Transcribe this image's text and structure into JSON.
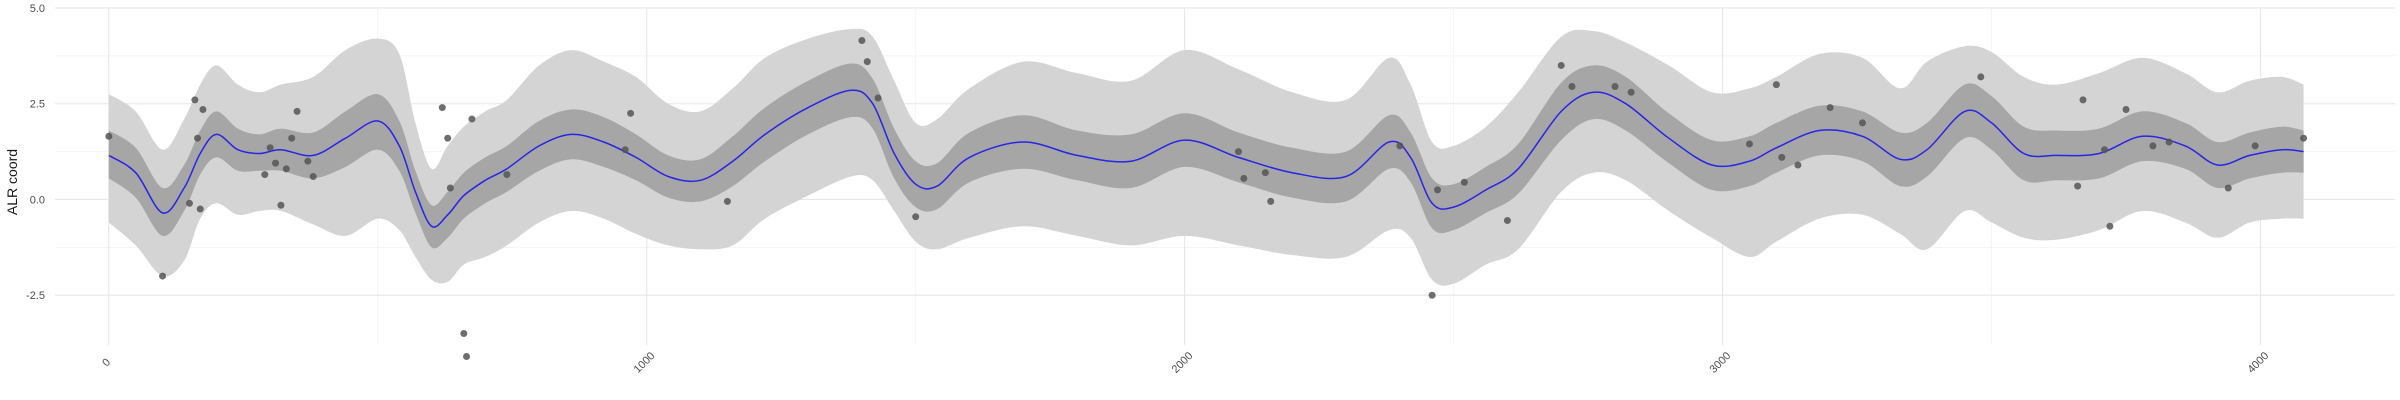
{
  "chart_data": {
    "type": "line",
    "title": "",
    "xlabel": "",
    "ylabel": "ALR coord",
    "xlim": [
      -100,
      4250
    ],
    "ylim": [
      -3.8,
      5.0
    ],
    "x_ticks": [
      0,
      1000,
      2000,
      3000,
      4000
    ],
    "x_tick_labels": [
      "0",
      "1000",
      "2000",
      "3000",
      "4000"
    ],
    "x_minor_ticks": [
      500,
      1500,
      2500,
      3500
    ],
    "y_ticks": [
      -2.5,
      0.0,
      2.5,
      5.0
    ],
    "y_tick_labels": [
      "-2.5",
      "0.0",
      "2.5",
      "5.0"
    ],
    "y_minor_ticks": [
      -1.25,
      1.25,
      3.75
    ],
    "grid": true,
    "legend": "none",
    "colors": {
      "mean_line": "#2626e6",
      "inner_band": "#a6a6a6",
      "outer_band": "#d4d4d4",
      "points": "#555555"
    },
    "series": [
      {
        "kind": "mean",
        "x": [
          0,
          50,
          100,
          140,
          170,
          200,
          240,
          280,
          320,
          380,
          440,
          500,
          540,
          570,
          600,
          630,
          660,
          700,
          740,
          800,
          860,
          920,
          980,
          1040,
          1100,
          1160,
          1220,
          1300,
          1380,
          1420,
          1460,
          1500,
          1540,
          1600,
          1700,
          1800,
          1900,
          2000,
          2100,
          2200,
          2300,
          2380,
          2420,
          2460,
          2500,
          2560,
          2620,
          2700,
          2760,
          2820,
          2900,
          2980,
          3050,
          3100,
          3180,
          3260,
          3330,
          3380,
          3450,
          3500,
          3560,
          3620,
          3700,
          3780,
          3860,
          3920,
          3980,
          4040,
          4080
        ],
        "y": [
          1.15,
          0.7,
          -0.35,
          0.3,
          1.2,
          1.7,
          1.3,
          1.2,
          1.3,
          1.15,
          1.6,
          2.05,
          1.4,
          0.2,
          -0.7,
          -0.4,
          0.1,
          0.5,
          0.8,
          1.4,
          1.7,
          1.5,
          1.1,
          0.6,
          0.5,
          1.0,
          1.7,
          2.4,
          2.85,
          2.5,
          1.2,
          0.4,
          0.35,
          1.1,
          1.5,
          1.15,
          1.0,
          1.55,
          1.1,
          0.7,
          0.6,
          1.5,
          1.1,
          -0.1,
          -0.2,
          0.25,
          0.8,
          2.3,
          2.8,
          2.5,
          1.6,
          0.9,
          1.0,
          1.35,
          1.8,
          1.65,
          1.05,
          1.3,
          2.3,
          2.0,
          1.2,
          1.15,
          1.2,
          1.65,
          1.4,
          0.9,
          1.15,
          1.3,
          1.25
        ]
      },
      {
        "kind": "inner_band",
        "x": [
          0,
          50,
          100,
          140,
          170,
          200,
          240,
          280,
          320,
          380,
          440,
          500,
          540,
          570,
          600,
          630,
          660,
          700,
          740,
          800,
          860,
          920,
          980,
          1040,
          1100,
          1160,
          1220,
          1300,
          1380,
          1420,
          1460,
          1500,
          1540,
          1600,
          1700,
          1800,
          1900,
          2000,
          2100,
          2200,
          2300,
          2380,
          2420,
          2460,
          2500,
          2560,
          2620,
          2700,
          2760,
          2820,
          2900,
          2980,
          3050,
          3100,
          3180,
          3260,
          3330,
          3380,
          3450,
          3500,
          3560,
          3620,
          3700,
          3780,
          3860,
          3920,
          3980,
          4040,
          4080
        ],
        "lower": [
          0.55,
          0.05,
          -0.95,
          -0.3,
          0.65,
          1.1,
          0.75,
          0.75,
          0.75,
          0.55,
          0.85,
          1.3,
          0.75,
          -0.35,
          -1.25,
          -1.0,
          -0.5,
          -0.1,
          0.2,
          0.75,
          1.05,
          0.85,
          0.5,
          0.05,
          -0.05,
          0.35,
          1.0,
          1.7,
          2.15,
          1.85,
          0.55,
          -0.2,
          -0.25,
          0.45,
          0.8,
          0.5,
          0.3,
          0.85,
          0.45,
          0.05,
          -0.05,
          0.8,
          0.45,
          -0.75,
          -0.8,
          -0.35,
          0.15,
          1.55,
          2.1,
          1.8,
          0.95,
          0.25,
          0.35,
          0.7,
          1.15,
          1.0,
          0.35,
          0.6,
          1.6,
          1.3,
          0.5,
          0.5,
          0.55,
          1.0,
          0.8,
          0.3,
          0.55,
          0.7,
          0.7
        ],
        "upper": [
          1.8,
          1.35,
          0.3,
          0.9,
          1.8,
          2.3,
          1.85,
          1.7,
          1.85,
          1.75,
          2.3,
          2.75,
          2.05,
          0.75,
          -0.15,
          0.2,
          0.7,
          1.1,
          1.4,
          2.05,
          2.35,
          2.15,
          1.7,
          1.15,
          1.05,
          1.65,
          2.4,
          3.1,
          3.55,
          3.15,
          1.85,
          1.0,
          0.95,
          1.75,
          2.2,
          1.8,
          1.7,
          2.25,
          1.75,
          1.35,
          1.25,
          2.2,
          1.75,
          0.55,
          0.4,
          0.85,
          1.45,
          3.05,
          3.5,
          3.2,
          2.25,
          1.55,
          1.65,
          2.0,
          2.45,
          2.3,
          1.75,
          2.0,
          3.0,
          2.7,
          1.9,
          1.8,
          1.85,
          2.3,
          2.0,
          1.5,
          1.75,
          1.9,
          1.8
        ]
      },
      {
        "kind": "outer_band",
        "x": [
          0,
          50,
          100,
          140,
          170,
          200,
          240,
          280,
          320,
          380,
          440,
          500,
          540,
          570,
          600,
          630,
          660,
          700,
          740,
          800,
          860,
          920,
          980,
          1040,
          1100,
          1160,
          1220,
          1300,
          1380,
          1420,
          1460,
          1500,
          1540,
          1600,
          1700,
          1800,
          1900,
          2000,
          2100,
          2200,
          2300,
          2380,
          2420,
          2460,
          2500,
          2560,
          2620,
          2700,
          2760,
          2820,
          2900,
          2980,
          3050,
          3100,
          3180,
          3260,
          3330,
          3380,
          3450,
          3500,
          3560,
          3620,
          3700,
          3780,
          3860,
          3920,
          3980,
          4040,
          4080
        ],
        "lower": [
          -0.6,
          -1.2,
          -2.0,
          -1.6,
          -0.5,
          -0.1,
          -0.4,
          -0.3,
          -0.3,
          -0.65,
          -0.95,
          -0.5,
          -0.8,
          -1.5,
          -2.1,
          -2.15,
          -1.7,
          -1.5,
          -1.2,
          -0.6,
          -0.3,
          -0.5,
          -0.9,
          -1.2,
          -1.3,
          -1.2,
          -0.5,
          0.1,
          0.6,
          0.5,
          -0.3,
          -1.1,
          -1.3,
          -1.0,
          -0.7,
          -0.95,
          -1.2,
          -0.95,
          -1.2,
          -1.45,
          -1.5,
          -0.8,
          -1.0,
          -2.1,
          -2.2,
          -1.7,
          -1.3,
          0.2,
          0.7,
          0.5,
          -0.3,
          -1.0,
          -1.5,
          -1.1,
          -0.5,
          -0.4,
          -0.9,
          -1.3,
          -0.3,
          -0.6,
          -1.0,
          -1.05,
          -0.8,
          -0.3,
          -0.6,
          -1.0,
          -0.6,
          -0.5,
          -0.5
        ],
        "upper": [
          2.75,
          2.3,
          1.3,
          2.1,
          3.0,
          3.5,
          3.0,
          2.8,
          3.0,
          3.2,
          3.9,
          4.2,
          3.8,
          2.0,
          0.8,
          1.4,
          1.9,
          2.3,
          2.6,
          3.5,
          3.9,
          3.6,
          3.2,
          2.5,
          2.3,
          2.9,
          3.7,
          4.2,
          4.45,
          4.25,
          3.1,
          2.0,
          2.1,
          2.9,
          3.6,
          3.3,
          3.1,
          3.9,
          3.4,
          2.8,
          2.6,
          3.7,
          3.0,
          1.5,
          1.4,
          1.9,
          2.8,
          4.25,
          4.4,
          4.1,
          3.5,
          2.8,
          2.9,
          3.2,
          3.8,
          3.7,
          2.9,
          3.6,
          4.0,
          3.85,
          3.2,
          3.0,
          3.3,
          3.7,
          3.3,
          2.8,
          3.1,
          3.2,
          3.0
        ]
      },
      {
        "kind": "observations",
        "x": [
          0,
          100,
          150,
          160,
          165,
          170,
          175,
          290,
          300,
          310,
          320,
          330,
          340,
          350,
          370,
          380,
          620,
          630,
          635,
          660,
          665,
          675,
          740,
          960,
          970,
          1150,
          1400,
          1410,
          1430,
          1500,
          2100,
          2110,
          2150,
          2160,
          2400,
          2460,
          2470,
          2520,
          2600,
          2700,
          2720,
          2800,
          2830,
          3050,
          3100,
          3110,
          3140,
          3200,
          3260,
          3480,
          3660,
          3670,
          3710,
          3720,
          3750,
          3800,
          3830,
          3940,
          3990,
          4080
        ],
        "y": [
          1.65,
          -2.0,
          -0.1,
          2.6,
          1.6,
          -0.25,
          2.35,
          0.65,
          1.35,
          0.95,
          -0.15,
          0.8,
          1.6,
          2.3,
          1.0,
          0.6,
          2.4,
          1.6,
          0.3,
          -3.5,
          -4.1,
          2.1,
          0.65,
          1.3,
          2.25,
          -0.05,
          4.15,
          3.6,
          2.65,
          -0.45,
          1.25,
          0.55,
          0.7,
          -0.05,
          1.4,
          -2.5,
          0.25,
          0.45,
          -0.55,
          3.5,
          2.95,
          2.95,
          2.8,
          1.45,
          3.0,
          1.1,
          0.9,
          2.4,
          2.0,
          3.2,
          0.35,
          2.6,
          1.3,
          -0.7,
          2.35,
          1.4,
          1.5,
          0.3,
          1.4,
          1.6
        ]
      }
    ]
  }
}
